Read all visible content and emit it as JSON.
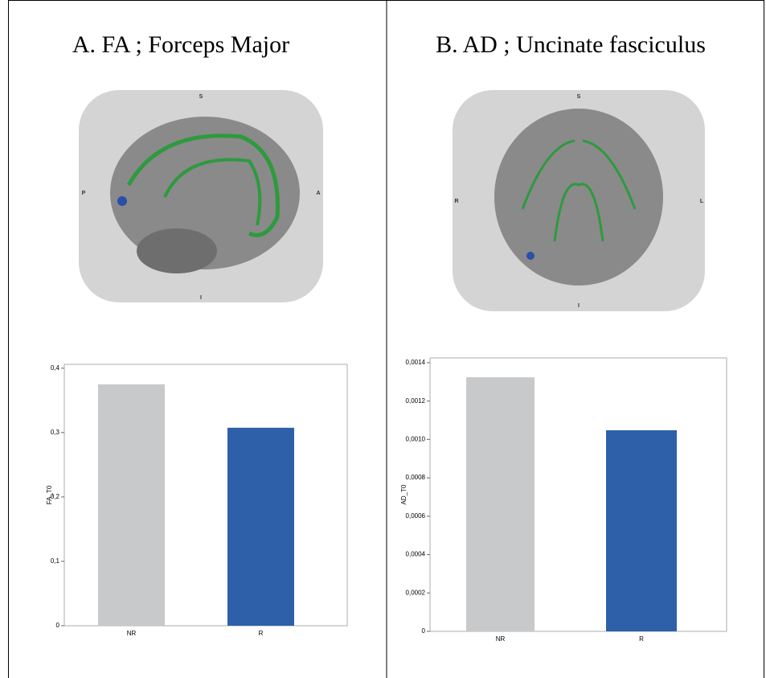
{
  "chart_data": [
    {
      "type": "bar",
      "title": "A.  FA ; Forceps Major",
      "y_label": "FA_T0",
      "categories": [
        "NR",
        "R"
      ],
      "values": [
        0.375,
        0.3075
      ],
      "colors": [
        "#c8c9cb",
        "#2e60aa"
      ],
      "ylim": [
        0,
        0.406
      ],
      "yticks": [
        0,
        {
          "value": 0.1,
          "label": "0,1"
        },
        {
          "value": 0.2,
          "label": "0,2"
        },
        {
          "value": 0.3,
          "label": "0,3"
        },
        {
          "value": 0.4,
          "label": "0,4"
        }
      ]
    },
    {
      "type": "bar",
      "title": "B. AD ; Uncinate fasciculus",
      "y_label": "AD_T0",
      "categories": [
        "NR",
        "R"
      ],
      "values": [
        0.001324,
        0.001048
      ],
      "colors": [
        "#c8c9cb",
        "#2e60aa"
      ],
      "ylim": [
        0,
        0.001425
      ],
      "yticks": [
        0,
        {
          "value": 0.0002,
          "label": "0,0002"
        },
        {
          "value": 0.0004,
          "label": "0,0004"
        },
        {
          "value": 0.0006,
          "label": "0,0006"
        },
        {
          "value": 0.0008,
          "label": "0,0008"
        },
        {
          "value": 0.001,
          "label": "0,0010"
        },
        {
          "value": 0.0012,
          "label": "0,0012"
        },
        {
          "value": 0.0014,
          "label": "0,0014"
        }
      ]
    }
  ],
  "brain_images": [
    {
      "labels": [
        "S",
        "P",
        "A",
        "I"
      ]
    },
    {
      "labels": [
        "S",
        "R",
        "L",
        "I"
      ]
    }
  ]
}
